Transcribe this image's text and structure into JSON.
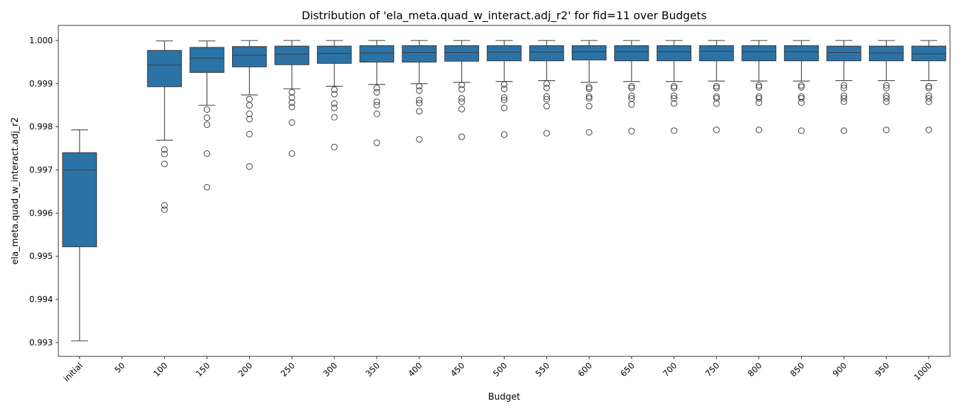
{
  "chart_data": {
    "type": "box",
    "title": "Distribution of 'ela_meta.quad_w_interact.adj_r2' for fid=11 over Budgets",
    "xlabel": "Budget",
    "ylabel": "ela_meta.quad_w_interact.adj_r2",
    "ylim": [
      0.99268,
      1.00035
    ],
    "yticks": [
      0.993,
      0.994,
      0.995,
      0.996,
      0.997,
      0.998,
      0.999,
      1.0
    ],
    "ytick_labels": [
      "0.993",
      "0.994",
      "0.995",
      "0.996",
      "0.997",
      "0.998",
      "0.999",
      "1.000"
    ],
    "grid": false,
    "box_color": "#2b73a7",
    "categories": [
      "initial",
      "50",
      "100",
      "150",
      "200",
      "250",
      "300",
      "350",
      "400",
      "450",
      "500",
      "550",
      "600",
      "650",
      "700",
      "750",
      "800",
      "850",
      "900",
      "950",
      "1000"
    ],
    "boxes": [
      {
        "q1": 0.99522,
        "median": 0.997,
        "q3": 0.9974,
        "whislo": 0.99304,
        "whishi": 0.99793,
        "fliers": []
      },
      null,
      {
        "q1": 0.99893,
        "median": 0.99943,
        "q3": 0.99977,
        "whislo": 0.99769,
        "whishi": 0.99999,
        "fliers": [
          0.99747,
          0.99737,
          0.99714,
          0.99618,
          0.99608
        ]
      },
      {
        "q1": 0.99926,
        "median": 0.99959,
        "q3": 0.99984,
        "whislo": 0.9985,
        "whishi": 0.99999,
        "fliers": [
          0.9984,
          0.99821,
          0.99805,
          0.99738,
          0.9966
        ]
      },
      {
        "q1": 0.99939,
        "median": 0.99966,
        "q3": 0.99986,
        "whislo": 0.99874,
        "whishi": 1.0,
        "fliers": [
          0.99864,
          0.9985,
          0.9983,
          0.99818,
          0.99783,
          0.99708
        ]
      },
      {
        "q1": 0.99944,
        "median": 0.99968,
        "q3": 0.99987,
        "whislo": 0.99888,
        "whishi": 1.0,
        "fliers": [
          0.9988,
          0.99868,
          0.99856,
          0.99846,
          0.9981,
          0.99738
        ]
      },
      {
        "q1": 0.99947,
        "median": 0.9997,
        "q3": 0.99987,
        "whislo": 0.99894,
        "whishi": 1.0,
        "fliers": [
          0.99886,
          0.99876,
          0.99854,
          0.99844,
          0.99822,
          0.99753
        ]
      },
      {
        "q1": 0.9995,
        "median": 0.99971,
        "q3": 0.99988,
        "whislo": 0.99898,
        "whishi": 1.0,
        "fliers": [
          0.9989,
          0.9988,
          0.99858,
          0.9985,
          0.9983,
          0.99763
        ]
      },
      {
        "q1": 0.9995,
        "median": 0.99972,
        "q3": 0.99988,
        "whislo": 0.999,
        "whishi": 1.0,
        "fliers": [
          0.99894,
          0.99884,
          0.99862,
          0.99855,
          0.99836,
          0.99771
        ]
      },
      {
        "q1": 0.99952,
        "median": 0.99972,
        "q3": 0.99988,
        "whislo": 0.99903,
        "whishi": 1.0,
        "fliers": [
          0.99897,
          0.99887,
          0.99866,
          0.99858,
          0.99841,
          0.99777
        ]
      },
      {
        "q1": 0.99953,
        "median": 0.99973,
        "q3": 0.99988,
        "whislo": 0.99905,
        "whishi": 1.0,
        "fliers": [
          0.99898,
          0.99888,
          0.99868,
          0.99862,
          0.99844,
          0.99782
        ]
      },
      {
        "q1": 0.99953,
        "median": 0.99973,
        "q3": 0.99988,
        "whislo": 0.99907,
        "whishi": 1.0,
        "fliers": [
          0.999,
          0.9989,
          0.9987,
          0.99864,
          0.99848,
          0.99785
        ]
      },
      {
        "q1": 0.99955,
        "median": 0.99974,
        "q3": 0.99988,
        "whislo": 0.99903,
        "whishi": 1.0,
        "fliers": [
          0.99892,
          0.99888,
          0.9987,
          0.99866,
          0.99848,
          0.99787
        ]
      },
      {
        "q1": 0.99953,
        "median": 0.99974,
        "q3": 0.99988,
        "whislo": 0.99905,
        "whishi": 1.0,
        "fliers": [
          0.99894,
          0.9989,
          0.99872,
          0.99866,
          0.99852,
          0.9979
        ]
      },
      {
        "q1": 0.99953,
        "median": 0.99974,
        "q3": 0.99988,
        "whislo": 0.99905,
        "whishi": 1.0,
        "fliers": [
          0.99894,
          0.9989,
          0.99872,
          0.99866,
          0.99854,
          0.99791
        ]
      },
      {
        "q1": 0.99953,
        "median": 0.99975,
        "q3": 0.99988,
        "whislo": 0.99906,
        "whishi": 1.0,
        "fliers": [
          0.99894,
          0.9989,
          0.9987,
          0.99866,
          0.99854,
          0.99793
        ]
      },
      {
        "q1": 0.99953,
        "median": 0.99974,
        "q3": 0.99988,
        "whislo": 0.99906,
        "whishi": 1.0,
        "fliers": [
          0.99896,
          0.99892,
          0.9987,
          0.99866,
          0.99856,
          0.99793
        ]
      },
      {
        "q1": 0.99953,
        "median": 0.99974,
        "q3": 0.99988,
        "whislo": 0.99906,
        "whishi": 1.0,
        "fliers": [
          0.99896,
          0.99892,
          0.9987,
          0.99866,
          0.99856,
          0.99791
        ]
      },
      {
        "q1": 0.99953,
        "median": 0.99972,
        "q3": 0.99987,
        "whislo": 0.99907,
        "whishi": 1.0,
        "fliers": [
          0.99896,
          0.9989,
          0.99872,
          0.99866,
          0.99858,
          0.99791
        ]
      },
      {
        "q1": 0.99953,
        "median": 0.99971,
        "q3": 0.99987,
        "whislo": 0.99907,
        "whishi": 1.0,
        "fliers": [
          0.99896,
          0.9989,
          0.99872,
          0.99866,
          0.99858,
          0.99793
        ]
      },
      {
        "q1": 0.99953,
        "median": 0.99969,
        "q3": 0.99987,
        "whislo": 0.99907,
        "whishi": 1.0,
        "fliers": [
          0.99894,
          0.9989,
          0.99872,
          0.99866,
          0.99858,
          0.99793
        ]
      }
    ]
  }
}
